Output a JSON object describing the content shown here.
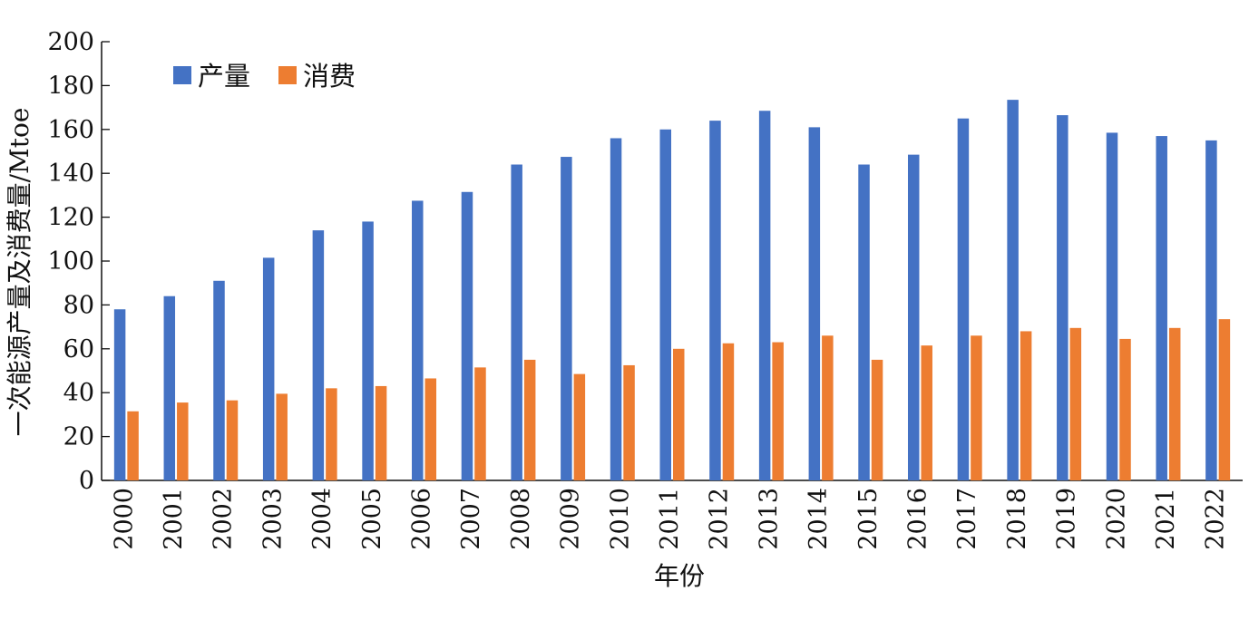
{
  "chart_data": {
    "type": "bar",
    "title": "",
    "xlabel": "年份",
    "ylabel": "一次能源产量及消费量/Mtoe",
    "ylim": [
      0,
      200
    ],
    "yticks": [
      0,
      20,
      40,
      60,
      80,
      100,
      120,
      140,
      160,
      180,
      200
    ],
    "grid": false,
    "legend_position": "top-left",
    "categories": [
      "2000",
      "2001",
      "2002",
      "2003",
      "2004",
      "2005",
      "2006",
      "2007",
      "2008",
      "2009",
      "2010",
      "2011",
      "2012",
      "2013",
      "2014",
      "2015",
      "2016",
      "2017",
      "2018",
      "2019",
      "2020",
      "2021",
      "2022"
    ],
    "series": [
      {
        "name": "产量",
        "color": "#4472C4",
        "values": [
          78,
          84,
          91,
          101.5,
          114,
          118,
          127.5,
          131.5,
          144,
          147.5,
          156,
          160,
          164,
          168.5,
          161,
          144,
          148.5,
          165,
          173.5,
          166.5,
          158.5,
          157,
          155
        ]
      },
      {
        "name": "消费",
        "color": "#ED7D31",
        "values": [
          31.5,
          35.5,
          36.5,
          39.5,
          42,
          43,
          46.5,
          51.5,
          55,
          48.5,
          52.5,
          60,
          62.5,
          63,
          66,
          55,
          61.5,
          66,
          68,
          69.5,
          64.5,
          69.5,
          73.5
        ]
      }
    ]
  }
}
